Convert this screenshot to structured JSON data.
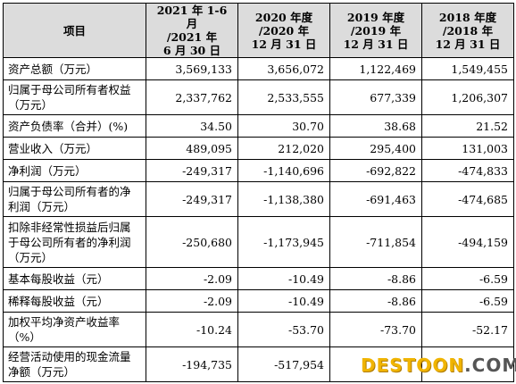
{
  "table": {
    "headers": [
      "项目",
      "2021 年 1-6 月\n/2021 年\n6 月 30 日",
      "2020 年度\n/2020 年\n12 月 31 日",
      "2019 年度\n/2019 年\n12 月 31 日",
      "2018 年度\n/2018 年\n12 月 31 日"
    ],
    "rows": [
      {
        "label": "资产总额（万元）",
        "values": [
          "3,569,133",
          "3,656,072",
          "1,122,469",
          "1,549,455"
        ]
      },
      {
        "label": "归属于母公司所有者权益（万元）",
        "values": [
          "2,337,762",
          "2,533,555",
          "677,339",
          "1,206,307"
        ]
      },
      {
        "label": "资产负债率（合并）(%)",
        "values": [
          "34.50",
          "30.70",
          "38.68",
          "21.52"
        ]
      },
      {
        "label": "营业收入（万元）",
        "values": [
          "489,095",
          "212,020",
          "295,400",
          "131,003"
        ]
      },
      {
        "label": "净利润（万元）",
        "values": [
          "-249,317",
          "-1,140,696",
          "-692,822",
          "-474,833"
        ]
      },
      {
        "label": "归属于母公司所有者的净利润（万元）",
        "values": [
          "-249,317",
          "-1,138,380",
          "-691,463",
          "-474,685"
        ]
      },
      {
        "label": "扣除非经常性损益后归属于母公司所有者的净利润（万元）",
        "values": [
          "-250,680",
          "-1,173,945",
          "-711,854",
          "-494,159"
        ]
      },
      {
        "label": "基本每股收益（元）",
        "values": [
          "-2.09",
          "-10.49",
          "-8.86",
          "-6.59"
        ]
      },
      {
        "label": "稀释每股收益（元）",
        "values": [
          "-2.09",
          "-10.49",
          "-8.86",
          "-6.59"
        ]
      },
      {
        "label": "加权平均净资产收益率（%）",
        "values": [
          "-10.24",
          "-53.70",
          "-73.70",
          "-52.17"
        ]
      },
      {
        "label": "经营活动使用的现金流量净额（万元）",
        "values": [
          "-194,735",
          "-517,954",
          "",
          ""
        ]
      }
    ]
  },
  "watermark": {
    "main": "DESTOON",
    "tail": ".COM"
  }
}
